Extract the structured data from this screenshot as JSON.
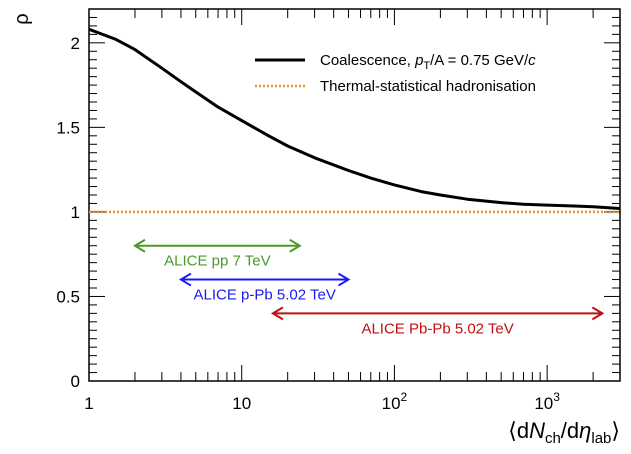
{
  "chart_data": {
    "type": "line",
    "xscale": "log",
    "xlim": [
      1,
      3000
    ],
    "ylim": [
      0,
      2.2
    ],
    "xlabel": {
      "open": "⟨d",
      "N": "N",
      "ch": "ch",
      "mid": "/d",
      "eta": "η",
      "lab": "lab",
      "close": "⟩"
    },
    "ylabel": "ρ",
    "x_tick_labels": [
      {
        "value": 1,
        "base": "1",
        "exp": ""
      },
      {
        "value": 10,
        "base": "10",
        "exp": ""
      },
      {
        "value": 100,
        "base": "10",
        "exp": "2"
      },
      {
        "value": 1000,
        "base": "10",
        "exp": "3"
      }
    ],
    "y_ticks": [
      {
        "value": 0,
        "label": "0"
      },
      {
        "value": 0.5,
        "label": "0.5"
      },
      {
        "value": 1,
        "label": "1"
      },
      {
        "value": 1.5,
        "label": "1.5"
      },
      {
        "value": 2,
        "label": "2"
      }
    ],
    "series": [
      {
        "name": "Coalescence, pT/A = 0.75 GeV/c",
        "legend": {
          "pre": "Coalescence, ",
          "p": "p",
          "sub": "T",
          "post": "/A = 0.75 GeV/",
          "c": "c"
        },
        "style": "solid",
        "color": "#000000",
        "x": [
          1,
          1.5,
          2,
          3,
          4,
          5,
          7,
          10,
          15,
          20,
          30,
          50,
          70,
          100,
          150,
          200,
          300,
          500,
          700,
          1000,
          1500,
          2000,
          3000
        ],
        "y": [
          2.08,
          2.02,
          1.96,
          1.85,
          1.77,
          1.71,
          1.62,
          1.54,
          1.45,
          1.39,
          1.32,
          1.245,
          1.2,
          1.16,
          1.12,
          1.1,
          1.075,
          1.055,
          1.045,
          1.04,
          1.035,
          1.03,
          1.02
        ]
      },
      {
        "name": "Thermal-statistical hadronisation",
        "style": "dotted",
        "color": "#e0962f",
        "x": [
          1,
          3000
        ],
        "y": [
          1,
          1
        ]
      }
    ],
    "legend_position": "top-right",
    "annotations": [
      {
        "label": "ALICE pp 7 TeV",
        "x_range": [
          2,
          24
        ],
        "y": 0.8,
        "color": "#4a9a2a"
      },
      {
        "label": "ALICE p-Pb 5.02 TeV",
        "x_range": [
          4,
          50
        ],
        "y": 0.6,
        "color": "#1a1aee"
      },
      {
        "label": "ALICE Pb-Pb 5.02 TeV",
        "x_range": [
          16,
          2300
        ],
        "y": 0.4,
        "color": "#c01010"
      }
    ]
  }
}
